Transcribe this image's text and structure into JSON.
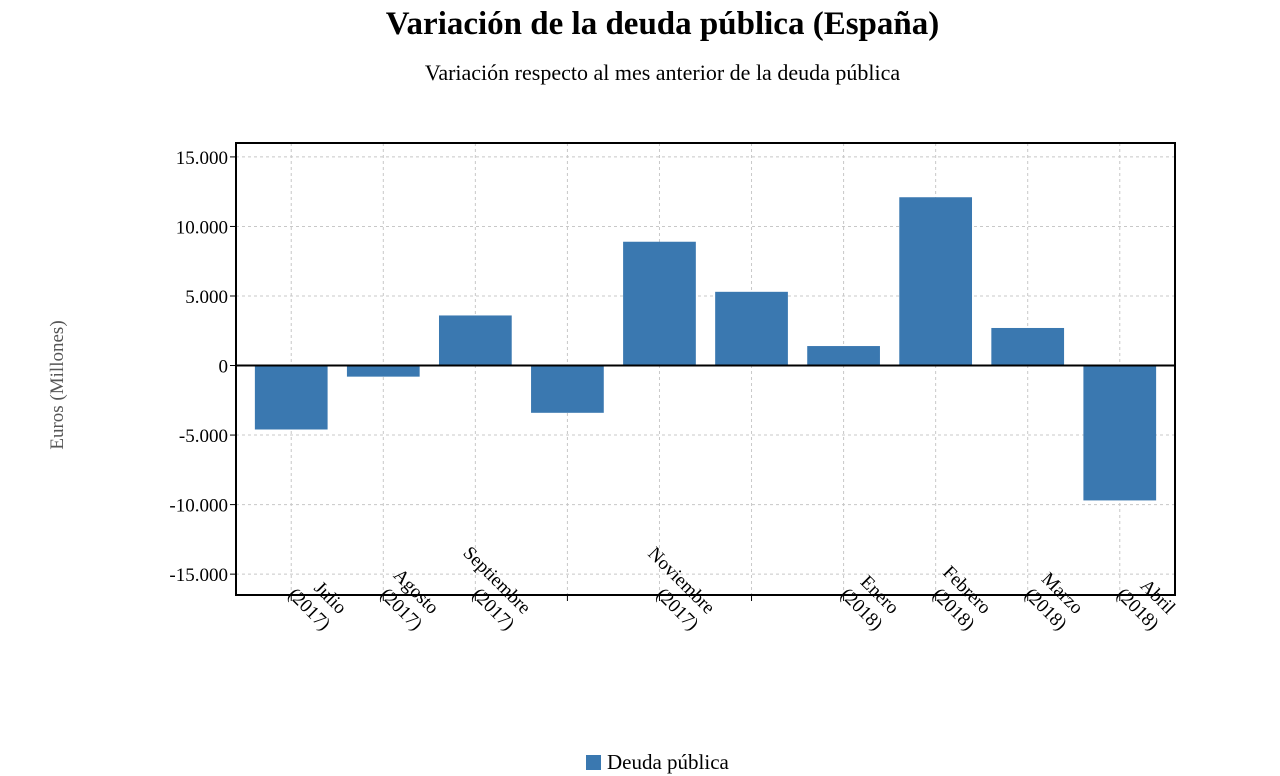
{
  "chart_data": {
    "type": "bar",
    "title": "Variación de la deuda pública (España)",
    "subtitle": "Variación respecto al mes anterior de la deuda pública",
    "ylabel": "Euros (Millones)",
    "ylim": [
      -16500,
      16000
    ],
    "yticks": [
      15000,
      10000,
      5000,
      0,
      -5000,
      -10000,
      -15000
    ],
    "ytick_labels": [
      "15.000",
      "10.000",
      "5.000",
      "0",
      "-5.000",
      "-10.000",
      "-15.000"
    ],
    "grid": true,
    "legend_position": "bottom-center",
    "categories": [
      [
        "Julio",
        "(2017)"
      ],
      [
        "Agosto",
        "(2017)"
      ],
      [
        "Septiembre",
        "(2017)"
      ],
      [
        "",
        ""
      ],
      [
        "Noviembre",
        "(2017)"
      ],
      [
        "",
        ""
      ],
      [
        "Enero",
        "(2018)"
      ],
      [
        "Febrero",
        "(2018)"
      ],
      [
        "Marzo",
        "(2018)"
      ],
      [
        "Abril",
        "(2018)"
      ]
    ],
    "series": [
      {
        "name": "Deuda pública",
        "color": "#3a78b0",
        "values": [
          -4600,
          -800,
          3600,
          -3400,
          8900,
          5300,
          1400,
          12100,
          2700,
          -9700
        ]
      }
    ]
  }
}
